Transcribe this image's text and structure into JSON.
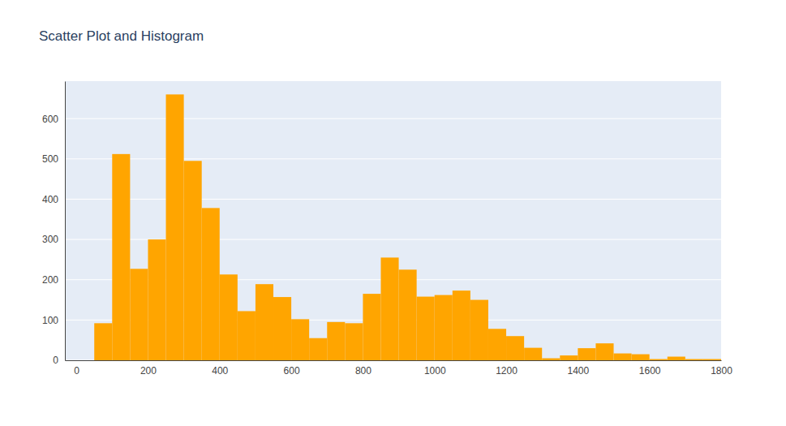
{
  "chart_data": {
    "type": "histogram",
    "title": "Scatter Plot and Histogram",
    "bins": [
      50,
      100,
      150,
      200,
      250,
      300,
      350,
      400,
      450,
      500,
      550,
      600,
      650,
      700,
      750,
      800,
      850,
      900,
      950,
      1000,
      1050,
      1100,
      1150,
      1200,
      1250,
      1300,
      1350,
      1400,
      1450,
      1500,
      1550,
      1600,
      1650,
      1700,
      1750,
      1800
    ],
    "values": [
      92,
      512,
      227,
      300,
      660,
      495,
      378,
      213,
      122,
      189,
      157,
      102,
      55,
      95,
      92,
      165,
      255,
      225,
      158,
      162,
      173,
      150,
      78,
      60,
      31,
      5,
      12,
      30,
      42,
      17,
      15,
      3,
      9,
      3,
      3
    ],
    "color": "#FFA500",
    "xlim": [
      -32,
      1800
    ],
    "xticks": [
      0,
      200,
      400,
      600,
      800,
      1000,
      1200,
      1400,
      1600,
      1800
    ],
    "ylim": [
      0,
      693
    ],
    "yticks": [
      0,
      100,
      200,
      300,
      400,
      500,
      600
    ],
    "grid": true
  }
}
